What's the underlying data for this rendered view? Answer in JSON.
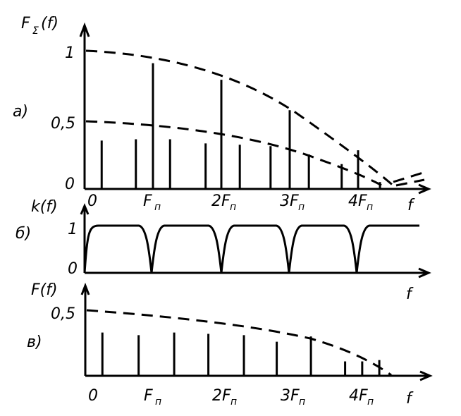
{
  "panels": {
    "a": {
      "panel_label": "a)",
      "y_label": "F",
      "y_label_sub": "Σ",
      "y_label_arg": "(f)",
      "y_ticks": [
        "1",
        "0,5",
        "0"
      ],
      "x_ticks": [
        "0",
        "F",
        "2F",
        "3F",
        "4F"
      ],
      "x_tick_sub": "п",
      "x_label": "f",
      "lines": [
        {
          "f": 0.25,
          "a": 0.35
        },
        {
          "f": 0.75,
          "a": 0.36
        },
        {
          "f": 1.0,
          "a": 0.91
        },
        {
          "f": 1.25,
          "a": 0.36
        },
        {
          "f": 1.77,
          "a": 0.33
        },
        {
          "f": 2.0,
          "a": 0.79
        },
        {
          "f": 2.27,
          "a": 0.32
        },
        {
          "f": 2.72,
          "a": 0.31
        },
        {
          "f": 3.0,
          "a": 0.57
        },
        {
          "f": 3.28,
          "a": 0.25
        },
        {
          "f": 3.76,
          "a": 0.18
        },
        {
          "f": 4.0,
          "a": 0.28
        },
        {
          "f": 4.32,
          "a": 0.05
        }
      ]
    },
    "b": {
      "panel_label": "б)",
      "y_label": "k(f)",
      "y_ticks": [
        "1",
        "0"
      ],
      "x_label": "f"
    },
    "c": {
      "panel_label": "в)",
      "y_label": "F(f)",
      "y_ticks": [
        "0,5"
      ],
      "x_ticks": [
        "0",
        "F",
        "2F",
        "3F",
        "4F"
      ],
      "x_tick_sub": "п",
      "x_label": "f",
      "lines": [
        {
          "f": 0.25,
          "a": 0.33
        },
        {
          "f": 0.78,
          "a": 0.31
        },
        {
          "f": 1.3,
          "a": 0.33
        },
        {
          "f": 1.8,
          "a": 0.32
        },
        {
          "f": 2.32,
          "a": 0.31
        },
        {
          "f": 2.8,
          "a": 0.26
        },
        {
          "f": 3.3,
          "a": 0.3
        },
        {
          "f": 3.8,
          "a": 0.11
        },
        {
          "f": 4.05,
          "a": 0.11
        },
        {
          "f": 4.3,
          "a": 0.12
        }
      ]
    }
  }
}
